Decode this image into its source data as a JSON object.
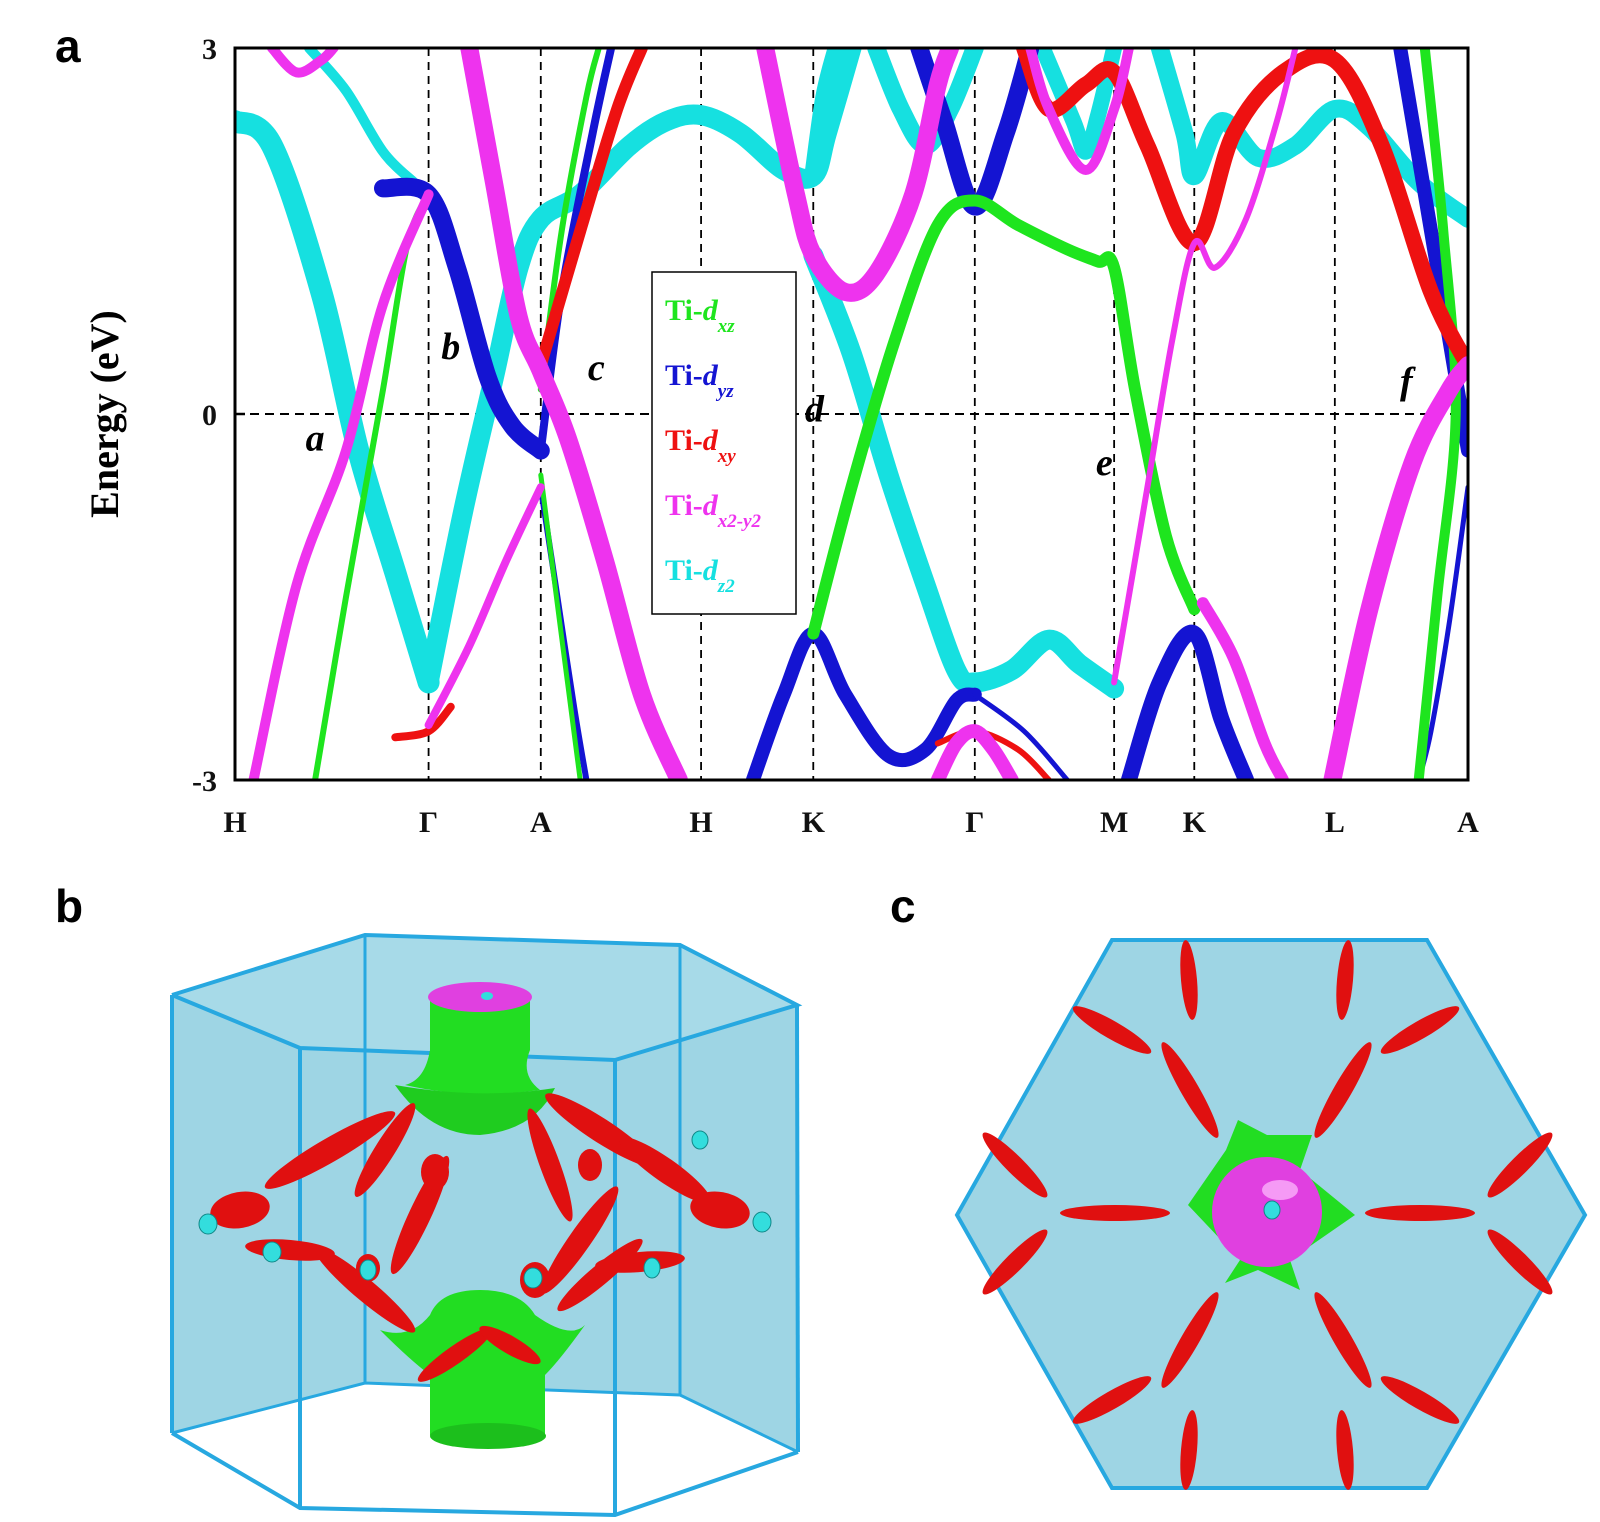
{
  "panels": {
    "a": "a",
    "b": "b",
    "c": "c"
  },
  "colors": {
    "dxz": "#1ee51e",
    "dyz": "#1414d2",
    "dxy": "#ee1111",
    "dx2y2": "#ee33ee",
    "dz2": "#16e0e0",
    "bz_edge": "#27a8e0",
    "bz_fill": "#9ed5e4",
    "pocket_red": "#e01010",
    "pocket_green": "#22dd22",
    "pocket_magenta": "#e040e0",
    "pocket_cyan": "#33dddd"
  },
  "chart_data": {
    "type": "line",
    "title": "",
    "ylabel": "Energy (eV)",
    "xlabel": "",
    "ylim": [
      -3,
      3
    ],
    "y_ticks": [
      "3",
      "0",
      "-3"
    ],
    "y_tick_values": [
      3,
      0,
      -3
    ],
    "fermi_level": 0,
    "k_path": [
      {
        "label": "H",
        "k": 0.0
      },
      {
        "label": "Γ",
        "k": 1.57
      },
      {
        "label": "A",
        "k": 2.48
      },
      {
        "label": "H",
        "k": 3.78
      },
      {
        "label": "K",
        "k": 4.69
      },
      {
        "label": "Γ",
        "k": 6.0
      },
      {
        "label": "M",
        "k": 7.13
      },
      {
        "label": "K",
        "k": 7.78
      },
      {
        "label": "L",
        "k": 8.92
      },
      {
        "label": "A",
        "k": 10.0
      }
    ],
    "k_max": 10.0,
    "legend": [
      {
        "prefix": "Ti-",
        "orbital": "d",
        "sub": "xz",
        "key": "dxz"
      },
      {
        "prefix": "Ti-",
        "orbital": "d",
        "sub": "yz",
        "key": "dyz"
      },
      {
        "prefix": "Ti-",
        "orbital": "d",
        "sub": "xy",
        "key": "dxy"
      },
      {
        "prefix": "Ti-",
        "orbital": "d",
        "sub": "x2-y2",
        "key": "dx2y2"
      },
      {
        "prefix": "Ti-",
        "orbital": "d",
        "sub": "z2",
        "key": "dz2"
      }
    ],
    "annotations": [
      {
        "text": "a",
        "k": 0.65,
        "e": -0.3
      },
      {
        "text": "b",
        "k": 1.75,
        "e": 0.45
      },
      {
        "text": "c",
        "k": 2.93,
        "e": 0.28
      },
      {
        "text": "d",
        "k": 4.7,
        "e": -0.06
      },
      {
        "text": "e",
        "k": 7.05,
        "e": -0.5
      },
      {
        "text": "f",
        "k": 9.5,
        "e": 0.17
      }
    ],
    "series": [
      {
        "name": "dz2 band 1",
        "orbital": "dz2",
        "width": 22,
        "points": [
          [
            0,
            2.4
          ],
          [
            0.3,
            2.2
          ],
          [
            0.7,
            1.0
          ],
          [
            1.0,
            -0.3
          ],
          [
            1.3,
            -1.3
          ],
          [
            1.57,
            -2.2
          ]
        ]
      },
      {
        "name": "dz2 band 2",
        "orbital": "dz2",
        "width": 20,
        "points": [
          [
            1.57,
            -2.2
          ],
          [
            1.85,
            -0.8
          ],
          [
            2.1,
            0.3
          ],
          [
            2.3,
            1.2
          ],
          [
            2.48,
            1.6
          ],
          [
            2.8,
            1.8
          ],
          [
            3.2,
            2.2
          ],
          [
            3.5,
            2.4
          ],
          [
            3.78,
            2.45
          ],
          [
            4.1,
            2.3
          ],
          [
            4.45,
            2.0
          ],
          [
            4.69,
            1.95
          ],
          [
            4.8,
            2.3
          ],
          [
            5.0,
            3.0
          ]
        ]
      },
      {
        "name": "dz2 band 3",
        "orbital": "dz2",
        "width": 20,
        "points": [
          [
            4.69,
            1.3
          ],
          [
            5.0,
            0.5
          ],
          [
            5.3,
            -0.5
          ],
          [
            5.6,
            -1.4
          ],
          [
            5.85,
            -2.1
          ],
          [
            6.0,
            -2.2
          ],
          [
            6.3,
            -2.1
          ],
          [
            6.6,
            -1.85
          ],
          [
            6.85,
            -2.05
          ],
          [
            7.13,
            -2.25
          ]
        ]
      },
      {
        "name": "dz2 band 4",
        "orbital": "dz2",
        "width": 18,
        "points": [
          [
            4.69,
            1.95
          ],
          [
            4.78,
            2.6
          ],
          [
            4.88,
            3.0
          ]
        ]
      },
      {
        "name": "dz2 band 5",
        "orbital": "dz2",
        "width": 18,
        "points": [
          [
            5.2,
            3.0
          ],
          [
            5.4,
            2.5
          ],
          [
            5.6,
            2.2
          ],
          [
            5.8,
            2.5
          ],
          [
            6.0,
            3.0
          ]
        ]
      },
      {
        "name": "dz2 band 6",
        "orbital": "dz2",
        "width": 16,
        "points": [
          [
            6.55,
            3.0
          ],
          [
            6.8,
            2.4
          ],
          [
            6.9,
            2.15
          ],
          [
            7.0,
            2.45
          ],
          [
            7.13,
            3.0
          ]
        ]
      },
      {
        "name": "dz2 band 7",
        "orbital": "dz2",
        "width": 18,
        "points": [
          [
            7.5,
            3.0
          ],
          [
            7.7,
            2.3
          ],
          [
            7.78,
            1.95
          ],
          [
            8.0,
            2.4
          ],
          [
            8.3,
            2.1
          ],
          [
            8.6,
            2.2
          ],
          [
            8.92,
            2.5
          ],
          [
            9.2,
            2.35
          ],
          [
            9.6,
            1.9
          ],
          [
            10.0,
            1.6
          ]
        ]
      },
      {
        "name": "dz2 band 8",
        "orbital": "dz2",
        "width": 10,
        "points": [
          [
            0.6,
            3.0
          ],
          [
            0.9,
            2.65
          ],
          [
            1.2,
            2.15
          ],
          [
            1.45,
            1.9
          ]
        ]
      },
      {
        "name": "dyz band 1",
        "orbital": "dyz",
        "width": 18,
        "points": [
          [
            1.2,
            1.85
          ],
          [
            1.57,
            1.8
          ],
          [
            1.8,
            1.2
          ],
          [
            2.05,
            0.3
          ],
          [
            2.25,
            -0.1
          ],
          [
            2.48,
            -0.3
          ]
        ]
      },
      {
        "name": "dyz band 2",
        "orbital": "dyz",
        "width": 8,
        "points": [
          [
            2.48,
            -0.3
          ],
          [
            2.65,
            1.0
          ],
          [
            2.9,
            2.3
          ],
          [
            3.05,
            3.0
          ]
        ]
      },
      {
        "name": "dyz band 3",
        "orbital": "dyz",
        "width": 6,
        "points": [
          [
            2.48,
            -0.6
          ],
          [
            2.6,
            -1.4
          ],
          [
            2.75,
            -2.4
          ],
          [
            2.85,
            -3.0
          ]
        ]
      },
      {
        "name": "dyz band 4",
        "orbital": "dyz",
        "width": 14,
        "points": [
          [
            4.2,
            -3.0
          ],
          [
            4.45,
            -2.3
          ],
          [
            4.69,
            -1.8
          ],
          [
            4.95,
            -2.3
          ],
          [
            5.3,
            -2.8
          ],
          [
            5.6,
            -2.75
          ],
          [
            5.85,
            -2.35
          ],
          [
            6.0,
            -2.3
          ]
        ]
      },
      {
        "name": "dyz band 5",
        "orbital": "dyz",
        "width": 18,
        "points": [
          [
            5.55,
            3.0
          ],
          [
            5.75,
            2.4
          ],
          [
            6.0,
            1.7
          ],
          [
            6.25,
            2.3
          ],
          [
            6.45,
            3.0
          ]
        ]
      },
      {
        "name": "dyz band 6",
        "orbital": "dyz",
        "width": 5,
        "points": [
          [
            6.0,
            -2.3
          ],
          [
            6.4,
            -2.6
          ],
          [
            6.75,
            -3.0
          ]
        ]
      },
      {
        "name": "dyz band 7",
        "orbital": "dyz",
        "width": 16,
        "points": [
          [
            7.25,
            -3.0
          ],
          [
            7.5,
            -2.2
          ],
          [
            7.78,
            -1.8
          ],
          [
            8.0,
            -2.5
          ],
          [
            8.2,
            -3.0
          ]
        ]
      },
      {
        "name": "dyz band 8",
        "orbital": "dyz",
        "width": 14,
        "points": [
          [
            9.45,
            3.0
          ],
          [
            9.75,
            1.2
          ],
          [
            10.0,
            -0.3
          ]
        ]
      },
      {
        "name": "dyz band 9",
        "orbital": "dyz",
        "width": 5,
        "points": [
          [
            10.0,
            -0.6
          ],
          [
            9.85,
            -1.7
          ],
          [
            9.7,
            -2.6
          ],
          [
            9.6,
            -3.0
          ]
        ]
      },
      {
        "name": "dxz band 1",
        "orbital": "dxz",
        "width": 6,
        "points": [
          [
            0.65,
            -3.0
          ],
          [
            0.9,
            -1.5
          ],
          [
            1.2,
            0.2
          ],
          [
            1.4,
            1.4
          ],
          [
            1.57,
            1.8
          ]
        ]
      },
      {
        "name": "dxz band 2",
        "orbital": "dxz",
        "width": 12,
        "points": [
          [
            4.69,
            -1.8
          ],
          [
            5.0,
            -0.6
          ],
          [
            5.35,
            0.6
          ],
          [
            5.7,
            1.55
          ],
          [
            6.0,
            1.75
          ],
          [
            6.35,
            1.55
          ],
          [
            6.75,
            1.35
          ],
          [
            7.0,
            1.25
          ],
          [
            7.13,
            1.2
          ],
          [
            7.3,
            0.2
          ],
          [
            7.55,
            -1.0
          ],
          [
            7.78,
            -1.6
          ]
        ]
      },
      {
        "name": "dxz band 3",
        "orbital": "dxz",
        "width": 10,
        "points": [
          [
            9.65,
            3.0
          ],
          [
            9.8,
            1.5
          ],
          [
            9.9,
            0.0
          ],
          [
            9.75,
            -1.5
          ],
          [
            9.6,
            -3.0
          ]
        ]
      },
      {
        "name": "dxz band 4",
        "orbital": "dxz",
        "width": 6,
        "points": [
          [
            2.48,
            0.2
          ],
          [
            2.65,
            1.5
          ],
          [
            2.85,
            2.6
          ],
          [
            2.95,
            3.0
          ]
        ]
      },
      {
        "name": "dxz band 5",
        "orbital": "dxz",
        "width": 5,
        "points": [
          [
            2.48,
            -0.5
          ],
          [
            2.62,
            -1.6
          ],
          [
            2.8,
            -3.0
          ]
        ]
      },
      {
        "name": "dxy band 1",
        "orbital": "dxy",
        "width": 12,
        "points": [
          [
            2.48,
            0.4
          ],
          [
            2.8,
            1.5
          ],
          [
            3.1,
            2.5
          ],
          [
            3.3,
            3.0
          ]
        ]
      },
      {
        "name": "dxy band 2",
        "orbital": "dxy",
        "width": 16,
        "points": [
          [
            6.4,
            3.0
          ],
          [
            6.6,
            2.5
          ],
          [
            6.9,
            2.7
          ],
          [
            7.13,
            2.8
          ],
          [
            7.4,
            2.2
          ],
          [
            7.78,
            1.4
          ],
          [
            8.1,
            2.3
          ],
          [
            8.5,
            2.8
          ],
          [
            8.92,
            2.9
          ],
          [
            9.3,
            2.2
          ],
          [
            9.7,
            1.0
          ],
          [
            10.0,
            0.4
          ]
        ]
      },
      {
        "name": "dxy band 3",
        "orbital": "dxy",
        "width": 8,
        "points": [
          [
            1.3,
            -2.65
          ],
          [
            1.57,
            -2.6
          ],
          [
            1.75,
            -2.4
          ]
        ]
      },
      {
        "name": "dxy band 4",
        "orbital": "dxy",
        "width": 6,
        "points": [
          [
            5.7,
            -2.7
          ],
          [
            6.0,
            -2.6
          ],
          [
            6.35,
            -2.75
          ],
          [
            6.6,
            -3.0
          ]
        ]
      },
      {
        "name": "dx2y2 band 1",
        "orbital": "dx2y2",
        "width": 10,
        "points": [
          [
            0.15,
            -3.0
          ],
          [
            0.5,
            -1.4
          ],
          [
            0.9,
            -0.3
          ],
          [
            1.2,
            0.9
          ],
          [
            1.57,
            1.8
          ]
        ]
      },
      {
        "name": "dx2y2 band 2",
        "orbital": "dx2y2",
        "width": 8,
        "points": [
          [
            1.57,
            -2.55
          ],
          [
            1.9,
            -1.9
          ],
          [
            2.2,
            -1.2
          ],
          [
            2.48,
            -0.6
          ]
        ]
      },
      {
        "name": "dx2y2 band 3",
        "orbital": "dx2y2",
        "width": 18,
        "points": [
          [
            1.9,
            3.0
          ],
          [
            2.1,
            1.9
          ],
          [
            2.3,
            0.8
          ],
          [
            2.48,
            0.35
          ],
          [
            2.7,
            -0.2
          ],
          [
            3.0,
            -1.2
          ],
          [
            3.3,
            -2.3
          ],
          [
            3.6,
            -3.0
          ]
        ]
      },
      {
        "name": "dx2y2 band 4",
        "orbital": "dx2y2",
        "width": 18,
        "points": [
          [
            4.3,
            3.0
          ],
          [
            4.55,
            1.8
          ],
          [
            4.69,
            1.3
          ],
          [
            4.95,
            1.0
          ],
          [
            5.2,
            1.15
          ],
          [
            5.5,
            1.8
          ],
          [
            5.7,
            2.7
          ],
          [
            5.8,
            3.0
          ]
        ]
      },
      {
        "name": "dx2y2 band 5",
        "orbital": "dx2y2",
        "width": 14,
        "points": [
          [
            5.7,
            -3.0
          ],
          [
            5.85,
            -2.7
          ],
          [
            6.0,
            -2.6
          ],
          [
            6.15,
            -2.75
          ],
          [
            6.3,
            -3.0
          ]
        ]
      },
      {
        "name": "dx2y2 band 6",
        "orbital": "dx2y2",
        "width": 6,
        "points": [
          [
            7.13,
            -2.2
          ],
          [
            7.4,
            -0.6
          ],
          [
            7.6,
            0.6
          ],
          [
            7.78,
            1.4
          ],
          [
            7.95,
            1.2
          ],
          [
            8.2,
            1.6
          ],
          [
            8.45,
            2.4
          ],
          [
            8.6,
            3.0
          ]
        ]
      },
      {
        "name": "dx2y2 band 7",
        "orbital": "dx2y2",
        "width": 12,
        "points": [
          [
            7.85,
            -1.55
          ],
          [
            8.1,
            -2.0
          ],
          [
            8.35,
            -2.7
          ],
          [
            8.5,
            -3.0
          ]
        ]
      },
      {
        "name": "dx2y2 band 8",
        "orbital": "dx2y2",
        "width": 18,
        "points": [
          [
            8.9,
            -3.0
          ],
          [
            9.2,
            -1.6
          ],
          [
            9.55,
            -0.4
          ],
          [
            9.85,
            0.2
          ],
          [
            10.0,
            0.4
          ]
        ]
      },
      {
        "name": "dx2y2 band 9",
        "orbital": "dx2y2",
        "width": 10,
        "points": [
          [
            0.3,
            3.0
          ],
          [
            0.5,
            2.8
          ],
          [
            0.7,
            2.9
          ],
          [
            0.8,
            3.0
          ]
        ]
      },
      {
        "name": "dx2y2 band 10",
        "orbital": "dx2y2",
        "width": 10,
        "points": [
          [
            6.45,
            3.0
          ],
          [
            6.6,
            2.5
          ],
          [
            6.9,
            2.0
          ],
          [
            7.13,
            2.5
          ],
          [
            7.25,
            3.0
          ]
        ]
      }
    ]
  }
}
